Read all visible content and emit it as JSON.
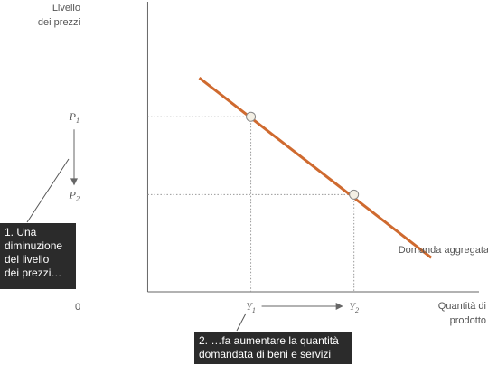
{
  "chart_data": {
    "type": "line",
    "ylabel_lines": [
      "Livello",
      "dei prezzi"
    ],
    "xlabel_lines": [
      "Quantità di",
      "prodotto"
    ],
    "origin_label": "0",
    "curve_label": "Domanda aggregata",
    "x_tick_labels": [
      "Y1",
      "Y2"
    ],
    "y_tick_labels": [
      "P1",
      "P2"
    ],
    "series": [
      {
        "x": [
          0.5,
          2.75
        ],
        "y": [
          2.2,
          0.35
        ]
      }
    ],
    "points": [
      {
        "x": 1,
        "y": 1.8,
        "x_label": "Y1",
        "y_label": "P1"
      },
      {
        "x": 2,
        "y": 1,
        "x_label": "Y2",
        "y_label": "P2"
      }
    ],
    "xlim": [
      -0.6,
      3.3
    ],
    "ylim": [
      0,
      3
    ],
    "grid": false,
    "annotations": [
      {
        "lines": [
          "1. Una",
          "diminuzione",
          "del livello",
          "dei prezzi…"
        ]
      },
      {
        "lines": [
          "2. …fa aumentare la quantità",
          "domandata di beni e servizi"
        ]
      }
    ],
    "colors": {
      "curve": "#cf6a2f",
      "text": "#555555",
      "callout_bg": "#2b2b2b",
      "marker_fill": "#f3efe4"
    }
  }
}
